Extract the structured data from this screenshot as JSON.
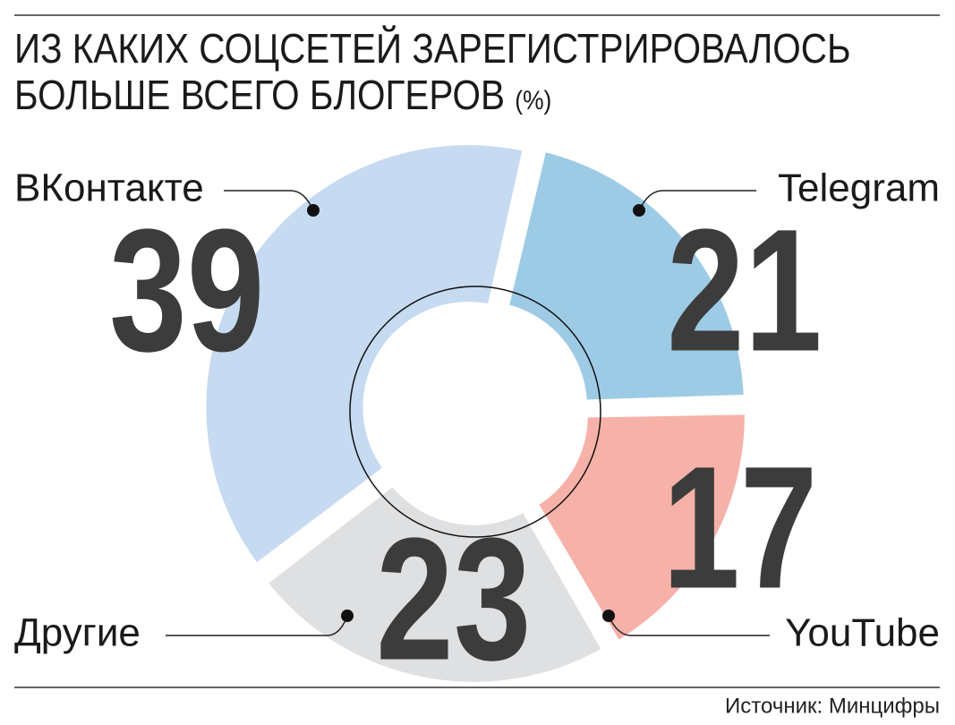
{
  "chart_data": {
    "type": "donut",
    "title": "ИЗ КАКИХ СОЦСЕТЕЙ ЗАРЕГИСТРИРОВАЛОСЬ БОЛЬШЕ ВСЕГО БЛОГЕРОВ",
    "unit": "(%)",
    "categories": [
      "Telegram",
      "YouTube",
      "Другие",
      "ВКонтакте"
    ],
    "values": [
      21,
      17,
      23,
      39
    ],
    "colors": [
      "#9dcbe5",
      "#f6b1a9",
      "#dfe0e2",
      "#c6daf1"
    ],
    "source": "Источник: Минцифры"
  }
}
